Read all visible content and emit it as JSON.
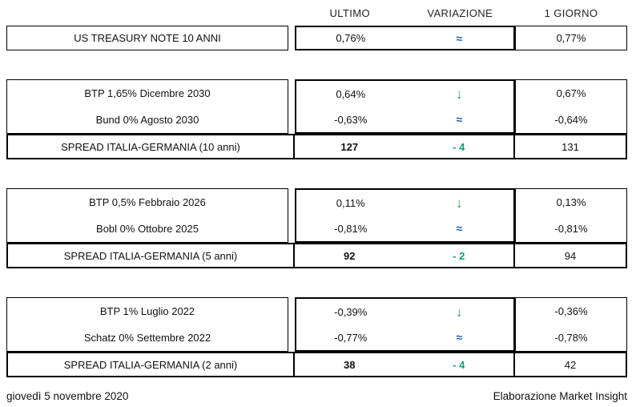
{
  "header": {
    "ultimo": "ULTIMO",
    "variazione": "VARIAZIONE",
    "giorno": "1 GIORNO"
  },
  "colors": {
    "arrow_down_green": "#2e9e4f",
    "approx_blue": "#1f63b0",
    "spread_delta_green": "#10a074",
    "border_black": "#000000",
    "background": "#ffffff"
  },
  "blocks": [
    {
      "rows": [
        {
          "label": "US TREASURY NOTE 10 ANNI",
          "ultimo": "0,76%",
          "variazione": "≈",
          "variazione_icon": "approx-equal-icon",
          "giorno": "0,77%"
        }
      ]
    },
    {
      "rows": [
        {
          "label": "BTP 1,65% Dicembre 2030",
          "ultimo": "0,64%",
          "variazione": "↓",
          "variazione_icon": "arrow-down-icon",
          "giorno": "0,67%"
        },
        {
          "label": "Bund 0% Agosto 2030",
          "ultimo": "-0,63%",
          "variazione": "≈",
          "variazione_icon": "approx-equal-icon",
          "giorno": "-0,64%"
        }
      ],
      "spread": {
        "label": "SPREAD ITALIA-GERMANIA (10 anni)",
        "ultimo": "127",
        "variazione": "- 4",
        "giorno": "131"
      }
    },
    {
      "rows": [
        {
          "label": "BTP 0,5% Febbraio 2026",
          "ultimo": "0,11%",
          "variazione": "↓",
          "variazione_icon": "arrow-down-icon",
          "giorno": "0,13%"
        },
        {
          "label": "Bobl 0% Ottobre 2025",
          "ultimo": "-0,81%",
          "variazione": "≈",
          "variazione_icon": "approx-equal-icon",
          "giorno": "-0,81%"
        }
      ],
      "spread": {
        "label": "SPREAD ITALIA-GERMANIA (5 anni)",
        "ultimo": "92",
        "variazione": "- 2",
        "giorno": "94"
      }
    },
    {
      "rows": [
        {
          "label": "BTP 1% Luglio 2022",
          "ultimo": "-0,39%",
          "variazione": "↓",
          "variazione_icon": "arrow-down-icon",
          "giorno": "-0,36%"
        },
        {
          "label": "Schatz 0% Settembre 2022",
          "ultimo": "-0,77%",
          "variazione": "≈",
          "variazione_icon": "approx-equal-icon",
          "giorno": "-0,78%"
        }
      ],
      "spread": {
        "label": "SPREAD ITALIA-GERMANIA (2 anni)",
        "ultimo": "38",
        "variazione": "- 4",
        "giorno": "42"
      }
    }
  ],
  "footer": {
    "date": "giovedì 5 novembre 2020",
    "credit": "Elaborazione Market Insight"
  },
  "chart_data": {
    "type": "table",
    "columns": [
      "",
      "ULTIMO",
      "VARIAZIONE",
      "1 GIORNO"
    ],
    "rows": [
      [
        "US TREASURY NOTE 10 ANNI",
        "0,76%",
        "≈",
        "0,77%"
      ],
      [
        "BTP 1,65% Dicembre 2030",
        "0,64%",
        "↓",
        "0,67%"
      ],
      [
        "Bund 0% Agosto 2030",
        "-0,63%",
        "≈",
        "-0,64%"
      ],
      [
        "SPREAD ITALIA-GERMANIA (10 anni)",
        "127",
        "- 4",
        "131"
      ],
      [
        "BTP 0,5% Febbraio 2026",
        "0,11%",
        "↓",
        "0,13%"
      ],
      [
        "Bobl 0% Ottobre 2025",
        "-0,81%",
        "≈",
        "-0,81%"
      ],
      [
        "SPREAD ITALIA-GERMANIA (5 anni)",
        "92",
        "- 2",
        "94"
      ],
      [
        "BTP 1% Luglio 2022",
        "-0,39%",
        "↓",
        "-0,36%"
      ],
      [
        "Schatz 0% Settembre 2022",
        "-0,77%",
        "≈",
        "-0,78%"
      ],
      [
        "SPREAD ITALIA-GERMANIA (2 anni)",
        "38",
        "- 4",
        "42"
      ]
    ]
  }
}
